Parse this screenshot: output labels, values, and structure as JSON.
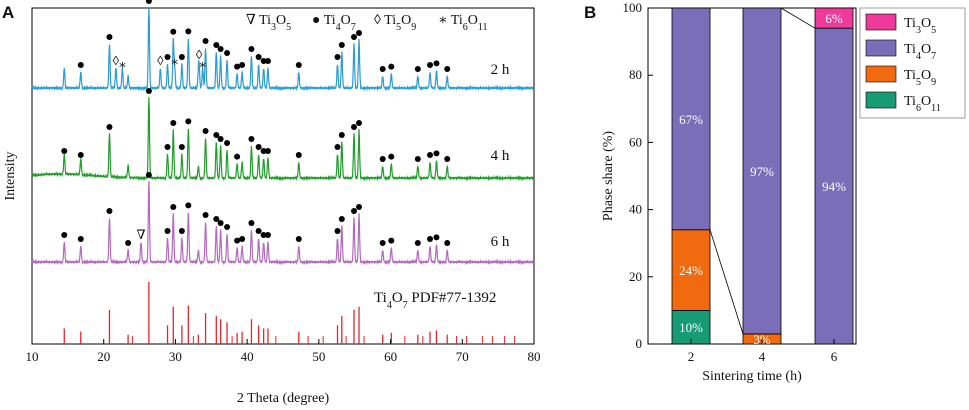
{
  "colors": {
    "blue": "#2a9bd3",
    "green": "#1f9e2a",
    "purple": "#b568bf",
    "red": "#e8242a",
    "Ti3O5": "#ee3a9a",
    "Ti4O7": "#7a6eb8",
    "Ti5O9": "#f26a10",
    "Ti6O11": "#169b74"
  },
  "chart_data": [
    {
      "panel": "A",
      "type": "line",
      "xlabel": "2 Theta (degree)",
      "ylabel": "Intensity",
      "xlim": [
        10,
        80
      ],
      "xticks": [
        10,
        20,
        30,
        40,
        50,
        60,
        70,
        80
      ],
      "header_legend": [
        {
          "symbol": "∇",
          "label": "Ti",
          "sub1": "3",
          "mid": "O",
          "sub2": "5"
        },
        {
          "symbol": "●",
          "label": "Ti",
          "sub1": "4",
          "mid": "O",
          "sub2": "7"
        },
        {
          "symbol": "◊",
          "label": "Ti",
          "sub1": "5",
          "mid": "O",
          "sub2": "9"
        },
        {
          "symbol": "∗",
          "label": "Ti",
          "sub1": "6",
          "mid": "O",
          "sub2": "11"
        }
      ],
      "peaks": [
        14.5,
        16.8,
        20.8,
        23.4,
        26.3,
        28.9,
        29.7,
        30.9,
        31.8,
        33.2,
        34.2,
        35.7,
        36.3,
        37.2,
        38.6,
        39.3,
        40.6,
        41.6,
        42.3,
        42.9,
        47.2,
        52.6,
        53.2,
        54.9,
        55.6,
        58.9,
        60.1,
        63.8,
        65.5,
        66.4,
        67.9
      ],
      "peak_heights": [
        0.25,
        0.2,
        0.55,
        0.15,
        1.0,
        0.3,
        0.6,
        0.3,
        0.62,
        0.15,
        0.5,
        0.45,
        0.4,
        0.35,
        0.18,
        0.2,
        0.4,
        0.3,
        0.25,
        0.25,
        0.2,
        0.3,
        0.45,
        0.55,
        0.6,
        0.15,
        0.18,
        0.15,
        0.2,
        0.22,
        0.15
      ],
      "series": [
        {
          "name": "2 h",
          "color_key": "blue",
          "dot_peaks": [
            16.8,
            20.8,
            26.3,
            28.9,
            29.7,
            30.9,
            31.8,
            34.2,
            35.7,
            36.3,
            37.2,
            38.6,
            39.3,
            40.6,
            41.6,
            42.3,
            42.9,
            47.2,
            52.6,
            53.2,
            54.9,
            55.6,
            58.9,
            60.1,
            63.8,
            65.5,
            66.4,
            67.9
          ],
          "diamond_peaks": [
            21.7,
            27.9,
            33.3
          ],
          "star_peaks": [
            22.6,
            29.9,
            33.8
          ],
          "extra_peaks": [
            21.7,
            22.6,
            27.9,
            29.9,
            33.3,
            33.8
          ]
        },
        {
          "name": "4 h",
          "color_key": "green",
          "dot_peaks": [
            14.5,
            16.8,
            20.8,
            26.3,
            28.9,
            29.7,
            30.9,
            31.8,
            34.2,
            35.7,
            36.3,
            37.2,
            38.6,
            40.6,
            41.6,
            42.3,
            42.9,
            47.2,
            52.6,
            53.2,
            54.9,
            55.6,
            58.9,
            60.1,
            63.8,
            65.5,
            66.4,
            67.9
          ],
          "diamond_peaks": [],
          "star_peaks": [],
          "extra_peaks": []
        },
        {
          "name": "6 h",
          "color_key": "purple",
          "dot_peaks": [
            14.5,
            16.8,
            20.8,
            23.4,
            26.3,
            28.9,
            29.7,
            30.9,
            31.8,
            34.2,
            35.7,
            36.3,
            37.2,
            38.6,
            39.3,
            40.6,
            41.6,
            42.3,
            42.9,
            47.2,
            52.6,
            53.2,
            54.9,
            55.6,
            58.9,
            60.1,
            63.8,
            65.5,
            66.4,
            67.9
          ],
          "triangle_peaks": [
            25.2
          ],
          "diamond_peaks": [],
          "star_peaks": [],
          "extra_peaks": [
            25.2
          ]
        },
        {
          "name": "Ti4O7 PDF#77-1392",
          "color_key": "red",
          "reference": true,
          "label_main": "Ti",
          "label_sub1": "4",
          "label_mid": "O",
          "label_sub2": "7",
          "label_tail": " PDF#77-1392"
        }
      ]
    },
    {
      "panel": "B",
      "type": "bar",
      "stacked": true,
      "xlabel": "Sintering time (h)",
      "ylabel": "Phase share (%)",
      "ylim": [
        0,
        100
      ],
      "yticks": [
        0,
        20,
        40,
        60,
        80,
        100
      ],
      "categories": [
        "2",
        "4",
        "6"
      ],
      "series": [
        {
          "name": "Ti6O11",
          "color_key": "Ti6O11",
          "values": [
            10,
            0,
            0
          ],
          "labels": [
            "10%",
            "",
            ""
          ]
        },
        {
          "name": "Ti5O9",
          "color_key": "Ti5O9",
          "values": [
            24,
            3,
            0
          ],
          "labels": [
            "24%",
            "3%",
            ""
          ]
        },
        {
          "name": "Ti4O7",
          "color_key": "Ti4O7",
          "values": [
            67,
            97,
            94
          ],
          "labels": [
            "67%",
            "97%",
            "94%"
          ]
        },
        {
          "name": "Ti3O5",
          "color_key": "Ti3O5",
          "values": [
            0,
            0,
            6
          ],
          "labels": [
            "",
            "",
            "6%"
          ]
        }
      ],
      "legend": [
        {
          "main": "Ti",
          "sub1": "3",
          "mid": "O",
          "sub2": "5",
          "color_key": "Ti3O5"
        },
        {
          "main": "Ti",
          "sub1": "4",
          "mid": "O",
          "sub2": "7",
          "color_key": "Ti4O7"
        },
        {
          "main": "Ti",
          "sub1": "5",
          "mid": "O",
          "sub2": "9",
          "color_key": "Ti5O9"
        },
        {
          "main": "Ti",
          "sub1": "6",
          "mid": "O",
          "sub2": "11",
          "color_key": "Ti6O11"
        }
      ],
      "legend_position": "top-right-outside"
    }
  ]
}
